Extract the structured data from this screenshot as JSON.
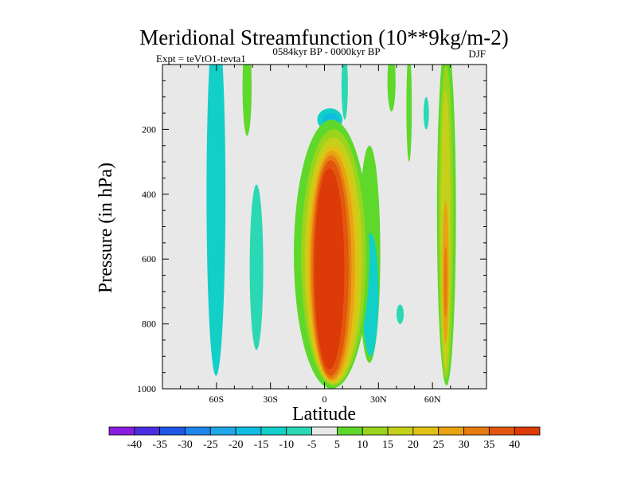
{
  "chart_data": {
    "type": "heatmap",
    "title": "Meridional Streamfunction (10**9kg/m-2)",
    "left_string": "Expt = teVtO1-tevta1",
    "center_string": "0584kyr BP - 0000kyr BP",
    "right_string": "DJF",
    "xlabel": "Latitude",
    "ylabel": "Pressure (in hPa)",
    "xlim": [
      -90,
      90
    ],
    "ylim": [
      1000,
      0
    ],
    "x_ticks": [
      {
        "value": -60,
        "label": "60S"
      },
      {
        "value": -30,
        "label": "30S"
      },
      {
        "value": 0,
        "label": "0"
      },
      {
        "value": 30,
        "label": "30N"
      },
      {
        "value": 60,
        "label": "60N"
      }
    ],
    "y_ticks": [
      {
        "value": 200,
        "label": "200"
      },
      {
        "value": 400,
        "label": "400"
      },
      {
        "value": 600,
        "label": "600"
      },
      {
        "value": 800,
        "label": "800"
      },
      {
        "value": 1000,
        "label": "1000"
      }
    ],
    "colorbar": {
      "levels": [
        -40,
        -35,
        -30,
        -25,
        -20,
        -15,
        -10,
        -5,
        5,
        10,
        15,
        20,
        25,
        30,
        35,
        40
      ],
      "labels": [
        "-40",
        "-35",
        "-30",
        "-25",
        "-20",
        "-15",
        "-10",
        "-5",
        "5",
        "10",
        "15",
        "20",
        "25",
        "30",
        "35",
        "40"
      ],
      "colors": [
        "#8a1be0",
        "#4a2fe0",
        "#1e56e6",
        "#1e86ea",
        "#1ea6e8",
        "#10bde0",
        "#12cfc8",
        "#2bd8b4",
        "#e8e8e8",
        "#5ed82a",
        "#9ad41c",
        "#c4d01a",
        "#e0c214",
        "#e8a212",
        "#e67c10",
        "#e2560e",
        "#dc3a06"
      ]
    },
    "background_color": "#e8e8e8",
    "features": [
      {
        "name": "tropical-max-cell",
        "lat_range": [
          -6,
          12
        ],
        "pressure_range": [
          240,
          980
        ],
        "max_value": 40,
        "sign": "positive"
      },
      {
        "name": "upper-tropical-negative",
        "lat_range": [
          -5,
          10
        ],
        "pressure_range": [
          140,
          200
        ],
        "min_value": -10,
        "sign": "negative"
      },
      {
        "name": "southern-negative-band",
        "lat_range": [
          -65,
          -55
        ],
        "pressure_range": [
          0,
          960
        ],
        "min_value": -10,
        "sign": "negative"
      },
      {
        "name": "southern-positive-band",
        "lat_range": [
          -45,
          -40
        ],
        "pressure_range": [
          0,
          220
        ],
        "max_value": 10,
        "sign": "positive"
      },
      {
        "name": "southern-mid-negative-band",
        "lat_range": [
          -41,
          -34
        ],
        "pressure_range": [
          380,
          880
        ],
        "min_value": -10,
        "sign": "negative"
      },
      {
        "name": "north-subtropical-negative",
        "lat_range": [
          20,
          30
        ],
        "pressure_range": [
          520,
          900
        ],
        "min_value": -10,
        "sign": "negative"
      },
      {
        "name": "northern-positive-band",
        "lat_range": [
          63,
          72
        ],
        "pressure_range": [
          0,
          980
        ],
        "max_value": 25,
        "sign": "positive"
      }
    ]
  }
}
